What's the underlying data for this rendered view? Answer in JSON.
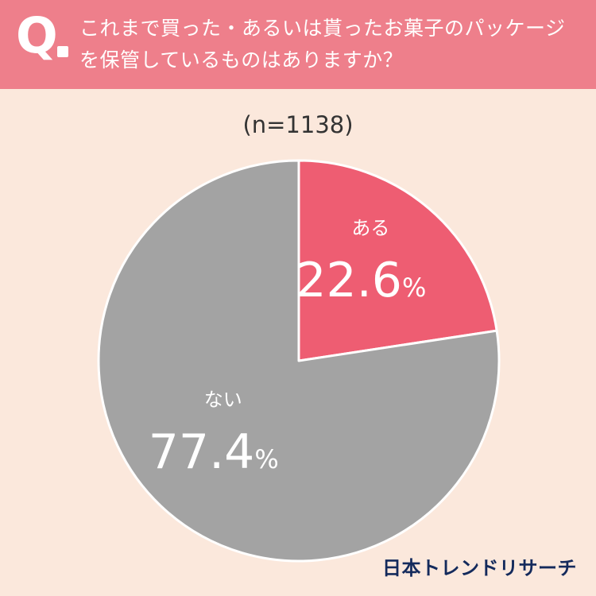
{
  "header": {
    "q_mark": "Q",
    "question": "これまで買った・あるいは貰ったお菓子のパッケージを保管しているものはありますか？"
  },
  "sample_label": "(n=1138)",
  "chart_data": {
    "type": "pie",
    "title": "これまで買った・あるいは貰ったお菓子のパッケージを保管しているものはありますか？",
    "categories": [
      "ある",
      "ない"
    ],
    "values": [
      22.6,
      77.4
    ],
    "unit": "%",
    "colors": [
      "#ee5d72",
      "#a3a3a3"
    ],
    "start_angle": "12 o'clock, clockwise"
  },
  "brand": "日本トレンドリサーチ"
}
